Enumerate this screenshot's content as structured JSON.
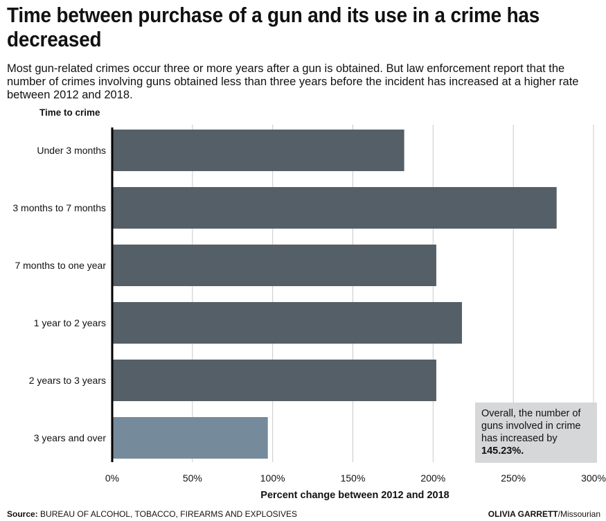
{
  "header": {
    "title": "Time between purchase of a gun and its use in a crime has decreased",
    "subtitle": "Most gun-related crimes occur three or more years after a gun is obtained. But law enforcement report that the number of crimes involving guns obtained less than three years before the incident has increased at a higher rate between 2012 and 2018."
  },
  "chart_data": {
    "type": "bar",
    "orientation": "horizontal",
    "title": "Time between purchase of a gun and its use in a crime has decreased",
    "ylabel": "Time to crime",
    "xlabel": "Percent change between 2012 and 2018",
    "categories": [
      "Under 3 months",
      "3 months to 7 months",
      "7 months to one year",
      "1 year to 2 years",
      "2 years to 3 years",
      "3 years and over"
    ],
    "values": [
      182,
      277,
      202,
      218,
      202,
      97
    ],
    "xlim": [
      0,
      300
    ],
    "xticks": [
      0,
      50,
      100,
      150,
      200,
      250,
      300
    ],
    "xtick_labels": [
      "0%",
      "50%",
      "100%",
      "150%",
      "200%",
      "250%",
      "300%"
    ],
    "grid": "vertical",
    "colors": {
      "bar": "#555f68",
      "highlight_bar": "#758b9b",
      "grid": "#c9c9c9",
      "axis": "#000000"
    },
    "highlight_category": "3 years and over"
  },
  "callout": {
    "text": "Overall, the number of guns involved in crime has increased by",
    "value": "145.23",
    "suffix": "%."
  },
  "footer": {
    "source_label": "Source:",
    "source_text": "BUREAU OF ALCOHOL, TOBACCO, FIREARMS AND EXPLOSIVES",
    "credit_name": "OLIVIA GARRETT",
    "credit_org": "/Missourian"
  }
}
